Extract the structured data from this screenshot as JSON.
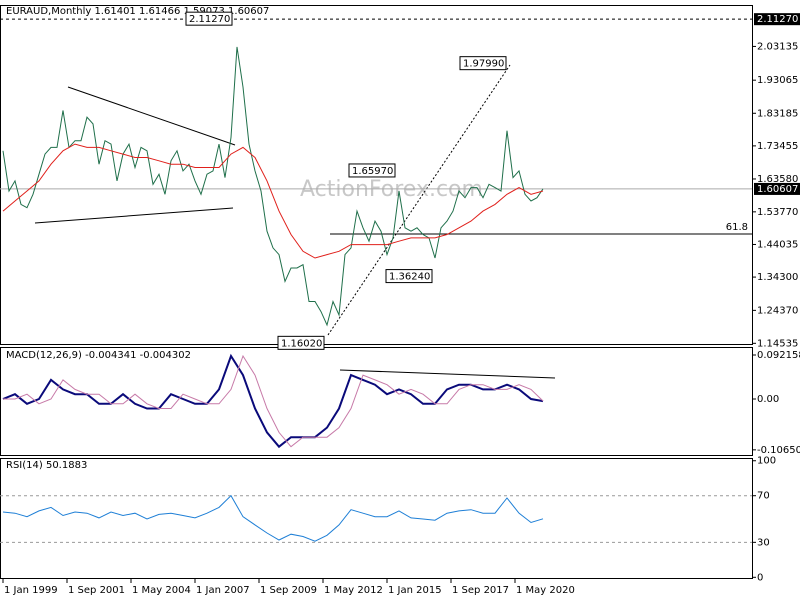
{
  "chart_data": [
    {
      "type": "line",
      "title": "EURAUD,Monthly 1.61401 1.61466 1.59073 1.60607",
      "watermark": "ActionForex.com",
      "ylim": [
        1.1433,
        2.152
      ],
      "yticks": [
        2.03135,
        1.93065,
        1.83185,
        1.73455,
        {
          "value": 1.6358,
          "label": "1.63580"
        },
        {
          "value": 1.5377,
          "label": "1.53770"
        },
        1.44035,
        {
          "value": 1.343,
          "label": "1.34300"
        },
        {
          "value": 1.2437,
          "label": "1.24370"
        },
        1.14535
      ],
      "price_labels": [
        {
          "value": 2.1127,
          "label": "2.11270"
        },
        {
          "value": 1.60607,
          "label": "1.60607"
        }
      ],
      "annotations": [
        {
          "value": 2.1127,
          "label": "2.11270"
        },
        {
          "value": 1.9799,
          "label": "1.97990"
        },
        {
          "value": 1.6597,
          "label": "1.65970"
        },
        {
          "value": 1.3624,
          "label": "1.36240"
        },
        {
          "value": 1.1602,
          "label": "1.16020"
        }
      ],
      "levels": [
        {
          "value": 1.4716,
          "label": "61.8"
        }
      ],
      "series": [
        {
          "color": "#1f6f4a",
          "x": [
            "1999-01",
            "1999-04",
            "1999-07",
            "1999-10",
            "2000-01",
            "2000-04",
            "2000-07",
            "2000-10",
            "2001-01",
            "2001-04",
            "2001-07",
            "2001-10",
            "2002-01",
            "2002-04",
            "2002-07",
            "2002-10",
            "2003-01",
            "2003-04",
            "2003-07",
            "2003-10",
            "2004-01",
            "2004-04",
            "2004-07",
            "2004-10",
            "2005-01",
            "2005-04",
            "2005-07",
            "2005-10",
            "2006-01",
            "2006-04",
            "2006-07",
            "2006-10",
            "2007-01",
            "2007-04",
            "2007-07",
            "2007-10",
            "2008-01",
            "2008-04",
            "2008-07",
            "2008-10",
            "2009-01",
            "2009-04",
            "2009-07",
            "2009-10",
            "2010-01",
            "2010-04",
            "2010-07",
            "2010-10",
            "2011-01",
            "2011-04",
            "2011-07",
            "2011-10",
            "2012-01",
            "2012-04",
            "2012-07",
            "2012-10",
            "2013-01",
            "2013-04",
            "2013-07",
            "2013-10",
            "2014-01",
            "2014-04",
            "2014-07",
            "2014-10",
            "2015-01",
            "2015-04",
            "2015-07",
            "2015-10",
            "2016-01",
            "2016-04",
            "2016-07",
            "2016-10",
            "2017-01",
            "2017-04",
            "2017-07",
            "2017-10",
            "2018-01",
            "2018-04",
            "2018-07",
            "2018-10",
            "2019-01",
            "2019-04",
            "2019-07",
            "2019-10",
            "2020-01",
            "2020-04",
            "2020-07",
            "2020-10",
            "2021-01",
            "2021-04",
            "2021-07"
          ],
          "values": [
            1.72,
            1.6,
            1.63,
            1.56,
            1.55,
            1.59,
            1.65,
            1.71,
            1.73,
            1.73,
            1.84,
            1.73,
            1.75,
            1.75,
            1.82,
            1.8,
            1.68,
            1.75,
            1.74,
            1.63,
            1.71,
            1.74,
            1.67,
            1.73,
            1.72,
            1.62,
            1.65,
            1.59,
            1.69,
            1.72,
            1.66,
            1.68,
            1.63,
            1.59,
            1.65,
            1.66,
            1.74,
            1.64,
            1.76,
            2.03,
            1.91,
            1.74,
            1.66,
            1.6,
            1.48,
            1.43,
            1.41,
            1.33,
            1.37,
            1.37,
            1.38,
            1.27,
            1.27,
            1.24,
            1.2,
            1.27,
            1.23,
            1.41,
            1.43,
            1.54,
            1.49,
            1.45,
            1.51,
            1.48,
            1.41,
            1.46,
            1.6,
            1.49,
            1.48,
            1.49,
            1.47,
            1.46,
            1.4,
            1.49,
            1.51,
            1.54,
            1.6,
            1.58,
            1.61,
            1.61,
            1.58,
            1.62,
            1.61,
            1.6,
            1.78,
            1.64,
            1.66,
            1.59,
            1.57,
            1.58,
            1.60607
          ]
        },
        {
          "color": "#e0201b",
          "x": [
            "1999-01",
            "1999-07",
            "2000-01",
            "2000-07",
            "2001-01",
            "2001-07",
            "2002-01",
            "2002-07",
            "2003-01",
            "2003-07",
            "2004-01",
            "2004-07",
            "2005-01",
            "2005-07",
            "2006-01",
            "2006-07",
            "2007-01",
            "2007-07",
            "2008-01",
            "2008-07",
            "2009-01",
            "2009-07",
            "2010-01",
            "2010-07",
            "2011-01",
            "2011-07",
            "2012-01",
            "2012-07",
            "2013-01",
            "2013-07",
            "2014-01",
            "2014-07",
            "2015-01",
            "2015-07",
            "2016-01",
            "2016-07",
            "2017-01",
            "2017-07",
            "2018-01",
            "2018-07",
            "2019-01",
            "2019-07",
            "2020-01",
            "2020-07",
            "2021-01",
            "2021-07"
          ],
          "values": [
            1.54,
            1.57,
            1.6,
            1.63,
            1.68,
            1.72,
            1.74,
            1.73,
            1.73,
            1.72,
            1.71,
            1.7,
            1.7,
            1.69,
            1.68,
            1.68,
            1.67,
            1.67,
            1.67,
            1.71,
            1.73,
            1.7,
            1.63,
            1.54,
            1.47,
            1.42,
            1.4,
            1.41,
            1.42,
            1.44,
            1.44,
            1.44,
            1.44,
            1.45,
            1.46,
            1.46,
            1.46,
            1.47,
            1.49,
            1.51,
            1.54,
            1.56,
            1.59,
            1.61,
            1.59,
            1.6
          ]
        }
      ]
    },
    {
      "type": "line",
      "title": "MACD(12,26,9) -0.004341 -0.004302",
      "ylim": [
        -0.1173,
        0.1068
      ],
      "yticks": [
        0.092158,
        {
          "value": 0,
          "label": "0.00"
        },
        -0.106503
      ],
      "x": [
        "1999-01",
        "1999-07",
        "2000-01",
        "2000-07",
        "2001-01",
        "2001-07",
        "2002-01",
        "2002-07",
        "2003-01",
        "2003-07",
        "2004-01",
        "2004-07",
        "2005-01",
        "2005-07",
        "2006-01",
        "2006-07",
        "2007-01",
        "2007-07",
        "2008-01",
        "2008-07",
        "2009-01",
        "2009-07",
        "2010-01",
        "2010-07",
        "2011-01",
        "2011-07",
        "2012-01",
        "2012-07",
        "2013-01",
        "2013-07",
        "2014-01",
        "2014-07",
        "2015-01",
        "2015-07",
        "2016-01",
        "2016-07",
        "2017-01",
        "2017-07",
        "2018-01",
        "2018-07",
        "2019-01",
        "2019-07",
        "2020-01",
        "2020-07",
        "2021-01",
        "2021-07"
      ],
      "series": [
        {
          "color": "#0a0a7a",
          "values": [
            0.0,
            0.01,
            -0.01,
            0.0,
            0.04,
            0.02,
            0.01,
            0.01,
            -0.01,
            -0.01,
            0.01,
            -0.01,
            -0.02,
            -0.02,
            0.01,
            0.0,
            -0.01,
            -0.01,
            0.02,
            0.09,
            0.05,
            -0.02,
            -0.07,
            -0.1,
            -0.08,
            -0.08,
            -0.08,
            -0.06,
            -0.02,
            0.05,
            0.04,
            0.03,
            0.01,
            0.02,
            0.01,
            -0.01,
            -0.01,
            0.02,
            0.03,
            0.03,
            0.02,
            0.02,
            0.03,
            0.02,
            0.0,
            -0.004341
          ]
        },
        {
          "color": "#c77aa8",
          "values": [
            0.0,
            0.0,
            0.01,
            -0.01,
            0.0,
            0.04,
            0.02,
            0.01,
            0.01,
            -0.01,
            -0.01,
            0.01,
            -0.01,
            -0.02,
            -0.02,
            0.01,
            0.0,
            -0.01,
            -0.01,
            0.02,
            0.09,
            0.05,
            -0.02,
            -0.07,
            -0.1,
            -0.08,
            -0.08,
            -0.08,
            -0.06,
            -0.02,
            0.05,
            0.04,
            0.03,
            0.01,
            0.02,
            0.01,
            -0.01,
            -0.01,
            0.02,
            0.03,
            0.03,
            0.02,
            0.02,
            0.03,
            0.02,
            -0.004302
          ]
        }
      ]
    },
    {
      "type": "line",
      "title": "RSI(14) 50.1883",
      "ylim": [
        -0.6,
        101.5
      ],
      "yticks": [
        100,
        70,
        30,
        0
      ],
      "levels": [
        70,
        30
      ],
      "xticks": [
        {
          "value": "1999-01",
          "label": "1 Jan 1999"
        },
        {
          "value": "2001-09",
          "label": "1 Sep 2001"
        },
        {
          "value": "2004-05",
          "label": "1 May 2004"
        },
        {
          "value": "2007-01",
          "label": "1 Jan 2007"
        },
        {
          "value": "2009-09",
          "label": "1 Sep 2009"
        },
        {
          "value": "2012-05",
          "label": "1 May 2012"
        },
        {
          "value": "2015-01",
          "label": "1 Jan 2015"
        },
        {
          "value": "2017-09",
          "label": "1 Sep 2017"
        },
        {
          "value": "2020-05",
          "label": "1 May 2020"
        }
      ],
      "x": [
        "1999-01",
        "1999-07",
        "2000-01",
        "2000-07",
        "2001-01",
        "2001-07",
        "2002-01",
        "2002-07",
        "2003-01",
        "2003-07",
        "2004-01",
        "2004-07",
        "2005-01",
        "2005-07",
        "2006-01",
        "2006-07",
        "2007-01",
        "2007-07",
        "2008-01",
        "2008-07",
        "2009-01",
        "2009-07",
        "2010-01",
        "2010-07",
        "2011-01",
        "2011-07",
        "2012-01",
        "2012-07",
        "2013-01",
        "2013-07",
        "2014-01",
        "2014-07",
        "2015-01",
        "2015-07",
        "2016-01",
        "2016-07",
        "2017-01",
        "2017-07",
        "2018-01",
        "2018-07",
        "2019-01",
        "2019-07",
        "2020-01",
        "2020-07",
        "2021-01",
        "2021-07"
      ],
      "series": [
        {
          "color": "#1e7fd6",
          "values": [
            56,
            55,
            52,
            57,
            60,
            53,
            56,
            55,
            51,
            56,
            53,
            55,
            50,
            54,
            55,
            53,
            51,
            55,
            60,
            70,
            52,
            45,
            38,
            32,
            37,
            35,
            31,
            36,
            45,
            58,
            55,
            52,
            52,
            57,
            51,
            50,
            49,
            55,
            57,
            58,
            55,
            55,
            68,
            55,
            47,
            50.1883
          ]
        }
      ]
    }
  ]
}
